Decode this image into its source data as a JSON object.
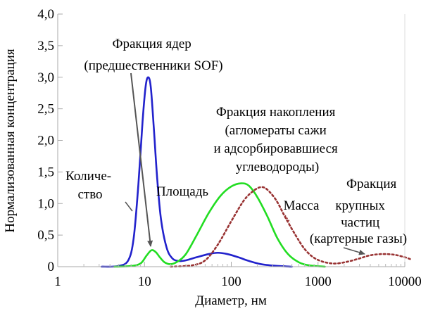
{
  "chart_data": {
    "type": "line",
    "title": "",
    "xlabel": "Диаметр, нм",
    "ylabel": "Нормализованная концентрация",
    "x_scale": "log",
    "xlim": [
      1,
      10000
    ],
    "ylim": [
      0,
      4.0
    ],
    "x_ticks": [
      "1",
      "10",
      "100",
      "1000",
      "10000"
    ],
    "y_ticks": [
      "0",
      "0,5",
      "1,0",
      "1,5",
      "2,0",
      "2,5",
      "3,0",
      "3,5",
      "4,0"
    ],
    "grid": false,
    "series": [
      {
        "name": "Количество",
        "color": "#2222cc",
        "style": "solid",
        "points": [
          [
            3.2,
            0.0
          ],
          [
            5,
            0.01
          ],
          [
            6.5,
            0.1
          ],
          [
            7.5,
            0.45
          ],
          [
            8.5,
            1.3
          ],
          [
            9.5,
            2.3
          ],
          [
            10.3,
            2.85
          ],
          [
            11,
            3.0
          ],
          [
            11.8,
            2.85
          ],
          [
            12.8,
            2.2
          ],
          [
            14,
            1.4
          ],
          [
            15.5,
            0.75
          ],
          [
            18,
            0.3
          ],
          [
            21,
            0.13
          ],
          [
            25,
            0.09
          ],
          [
            30,
            0.1
          ],
          [
            40,
            0.15
          ],
          [
            55,
            0.2
          ],
          [
            70,
            0.22
          ],
          [
            90,
            0.2
          ],
          [
            120,
            0.15
          ],
          [
            160,
            0.09
          ],
          [
            220,
            0.04
          ],
          [
            320,
            0.015
          ],
          [
            500,
            0.0
          ]
        ]
      },
      {
        "name": "Площадь",
        "color": "#22dd22",
        "style": "solid",
        "points": [
          [
            4.5,
            0.0
          ],
          [
            7,
            0.01
          ],
          [
            9,
            0.05
          ],
          [
            10.5,
            0.17
          ],
          [
            12,
            0.26
          ],
          [
            13.5,
            0.23
          ],
          [
            15,
            0.15
          ],
          [
            17,
            0.07
          ],
          [
            20,
            0.04
          ],
          [
            24,
            0.08
          ],
          [
            30,
            0.2
          ],
          [
            40,
            0.5
          ],
          [
            55,
            0.85
          ],
          [
            75,
            1.12
          ],
          [
            100,
            1.27
          ],
          [
            130,
            1.32
          ],
          [
            160,
            1.28
          ],
          [
            200,
            1.1
          ],
          [
            260,
            0.8
          ],
          [
            340,
            0.45
          ],
          [
            450,
            0.2
          ],
          [
            600,
            0.07
          ],
          [
            800,
            0.02
          ],
          [
            1200,
            0.0
          ]
        ]
      },
      {
        "name": "Масса",
        "color": "#993333",
        "style": "dotted",
        "points": [
          [
            20,
            0.0
          ],
          [
            35,
            0.02
          ],
          [
            50,
            0.1
          ],
          [
            70,
            0.35
          ],
          [
            100,
            0.72
          ],
          [
            140,
            1.05
          ],
          [
            180,
            1.2
          ],
          [
            220,
            1.26
          ],
          [
            260,
            1.22
          ],
          [
            330,
            1.05
          ],
          [
            420,
            0.78
          ],
          [
            550,
            0.5
          ],
          [
            700,
            0.28
          ],
          [
            900,
            0.14
          ],
          [
            1200,
            0.07
          ],
          [
            1600,
            0.05
          ],
          [
            2200,
            0.08
          ],
          [
            3000,
            0.13
          ],
          [
            4000,
            0.18
          ],
          [
            5500,
            0.2
          ],
          [
            7500,
            0.19
          ],
          [
            10000,
            0.15
          ],
          [
            11500,
            0.12
          ]
        ]
      }
    ],
    "annotations": [
      {
        "lines": [
          "Фракция ядер",
          "(предшественники SOF)"
        ]
      },
      {
        "lines": [
          "Фракция накопления",
          "(агломераты сажи",
          "и адсорбировавшиеся",
          "углеводороды)"
        ]
      },
      {
        "lines": [
          "Количе-",
          "ство"
        ]
      },
      {
        "lines": [
          "Площадь"
        ]
      },
      {
        "lines": [
          "Масса"
        ]
      },
      {
        "lines": [
          "Фракция",
          "крупных",
          "частиц",
          "(картерные газы)"
        ]
      }
    ]
  }
}
